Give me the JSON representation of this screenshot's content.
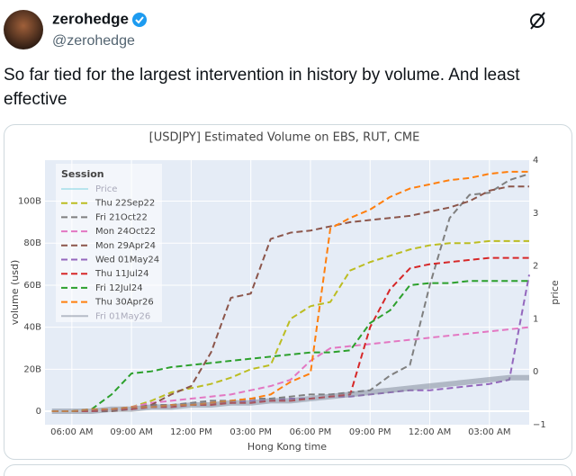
{
  "post": {
    "author": "zerohedge",
    "handle": "@zerohedge",
    "text": "So far tied for the largest intervention in history by volume. And least effective"
  },
  "chart_data": {
    "type": "line",
    "title": "[USDJPY] Estimated Volume on EBS, RUT, CME",
    "xlabel": "Hong Kong time",
    "ylabel": "volume (usd)",
    "y2label": "price",
    "legend_title": "Session",
    "legend": "upper left",
    "grid": true,
    "x": [
      5,
      6,
      7,
      8,
      9,
      10,
      11,
      12,
      13,
      14,
      15,
      16,
      17,
      18,
      19,
      20,
      21,
      22,
      23,
      24,
      25,
      26,
      27,
      28,
      29
    ],
    "xlim": [
      4.65,
      29
    ],
    "xticks": [
      {
        "value": 6,
        "label": "06:00 AM"
      },
      {
        "value": 9,
        "label": "09:00 AM"
      },
      {
        "value": 12,
        "label": "12:00 PM"
      },
      {
        "value": 15,
        "label": "03:00 PM"
      },
      {
        "value": 18,
        "label": "06:00 PM"
      },
      {
        "value": 21,
        "label": "09:00 PM"
      },
      {
        "value": 24,
        "label": "12:00 AM"
      },
      {
        "value": 27,
        "label": "03:00 AM"
      }
    ],
    "ylim": [
      -6.4,
      119.5
    ],
    "yticks": [
      0,
      {
        "value": 20,
        "label": "20B"
      },
      {
        "value": 40,
        "label": "40B"
      },
      {
        "value": 60,
        "label": "60B"
      },
      {
        "value": 80,
        "label": "80B"
      },
      {
        "value": 100,
        "label": "100B"
      }
    ],
    "y2lim": [
      -1,
      4
    ],
    "y2ticks": [
      {
        "value": -1,
        "label": "−1"
      },
      0,
      1,
      2,
      3,
      4
    ],
    "series": [
      {
        "name": "Price",
        "color": "#7fd3e0",
        "dash": false,
        "axis": "y2",
        "visible": false,
        "values": [
          null,
          null,
          null,
          null,
          null,
          null,
          null,
          null,
          null,
          null,
          null,
          null,
          null,
          null,
          null,
          null,
          null,
          null,
          null,
          null,
          null,
          null,
          null,
          null,
          null
        ]
      },
      {
        "name": "Thu 22Sep22",
        "color": "#bcbd22",
        "dash": true,
        "values": [
          0,
          0,
          0.5,
          1,
          2,
          5,
          9,
          11,
          13,
          16,
          20,
          22,
          44,
          50,
          52,
          67,
          71,
          74,
          77,
          79,
          80,
          80,
          81,
          81,
          81
        ]
      },
      {
        "name": "Fri 21Oct22",
        "color": "#7f7f7f",
        "dash": true,
        "values": [
          0,
          0,
          0,
          1,
          2,
          3,
          3,
          4,
          5,
          5,
          6,
          6,
          7,
          8,
          8,
          9,
          10,
          17,
          22,
          60,
          92,
          103,
          104,
          110,
          113
        ]
      },
      {
        "name": "Mon 24Oct22",
        "color": "#e377c2",
        "dash": true,
        "values": [
          0,
          0,
          0,
          1,
          2,
          4,
          5,
          6,
          7,
          8,
          10,
          12,
          15,
          24,
          30,
          31,
          32,
          33,
          34,
          35,
          36,
          37,
          38,
          39,
          40
        ]
      },
      {
        "name": "Mon 29Apr24",
        "color": "#8c564b",
        "dash": true,
        "values": [
          0,
          0,
          0,
          0,
          1,
          3,
          8,
          12,
          28,
          54,
          56,
          82,
          85,
          86,
          88,
          90,
          91,
          92,
          93,
          95,
          97,
          100,
          105,
          107,
          107
        ]
      },
      {
        "name": "Wed 01May24",
        "color": "#9467bd",
        "dash": true,
        "values": [
          0,
          0,
          0,
          1,
          1,
          2,
          3,
          3,
          4,
          4,
          5,
          5,
          6,
          6,
          7,
          7,
          8,
          9,
          10,
          10,
          11,
          12,
          13,
          15,
          65
        ]
      },
      {
        "name": "Thu 11Jul24",
        "color": "#d62728",
        "dash": true,
        "values": [
          0,
          0,
          0,
          1,
          1,
          2,
          2,
          3,
          3,
          4,
          4,
          5,
          5,
          6,
          7,
          8,
          40,
          58,
          68,
          70,
          71,
          72,
          73,
          73,
          73
        ]
      },
      {
        "name": "Fri 12Jul24",
        "color": "#2ca02c",
        "dash": true,
        "values": [
          0,
          0,
          1,
          8,
          18,
          19,
          21,
          22,
          23,
          24,
          25,
          26,
          27,
          28,
          28,
          29,
          42,
          48,
          60,
          61,
          61,
          62,
          62,
          62,
          62
        ]
      },
      {
        "name": "Thu 30Apr26",
        "color": "#ff7f0e",
        "dash": true,
        "values": [
          0,
          0,
          1,
          1,
          2,
          2,
          3,
          3,
          4,
          5,
          6,
          8,
          14,
          18,
          87,
          92,
          96,
          102,
          106,
          108,
          110,
          111,
          113,
          114,
          114
        ]
      },
      {
        "name": "Fri 01May26",
        "color": "#7b8494",
        "dash": false,
        "opacity": 0.5,
        "values": [
          0,
          0,
          0,
          1,
          1,
          2,
          2,
          3,
          3,
          4,
          4,
          5,
          5,
          6,
          7,
          8,
          9,
          10,
          11,
          12,
          13,
          14,
          15,
          16,
          16
        ]
      }
    ]
  }
}
